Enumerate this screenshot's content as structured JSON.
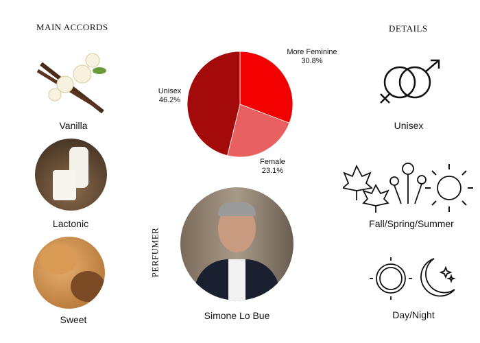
{
  "headings": {
    "main_accords": "MAIN ACCORDS",
    "details": "DETAILS",
    "perfumer": "PERFUMER"
  },
  "accords": [
    {
      "label": "Vanilla"
    },
    {
      "label": "Lactonic"
    },
    {
      "label": "Sweet"
    }
  ],
  "perfumer": {
    "name": "Simone Lo Bue"
  },
  "details": {
    "gender": "Unisex",
    "season": "Fall/Spring/Summer",
    "time": "Day/Night",
    "icons": [
      "gender-symbols-icon",
      "maple-leaf-icon",
      "flower-icon",
      "sun-icon",
      "moon-stars-icon"
    ]
  },
  "chart_data": {
    "type": "pie",
    "slices": [
      {
        "label": "More Feminine",
        "value": 30.8,
        "display": "30.8%",
        "color": "#f20000"
      },
      {
        "label": "Female",
        "value": 23.1,
        "display": "23.1%",
        "color": "#e86060"
      },
      {
        "label": "Unisex",
        "value": 46.2,
        "display": "46.2%",
        "color": "#a30a0a"
      }
    ]
  }
}
